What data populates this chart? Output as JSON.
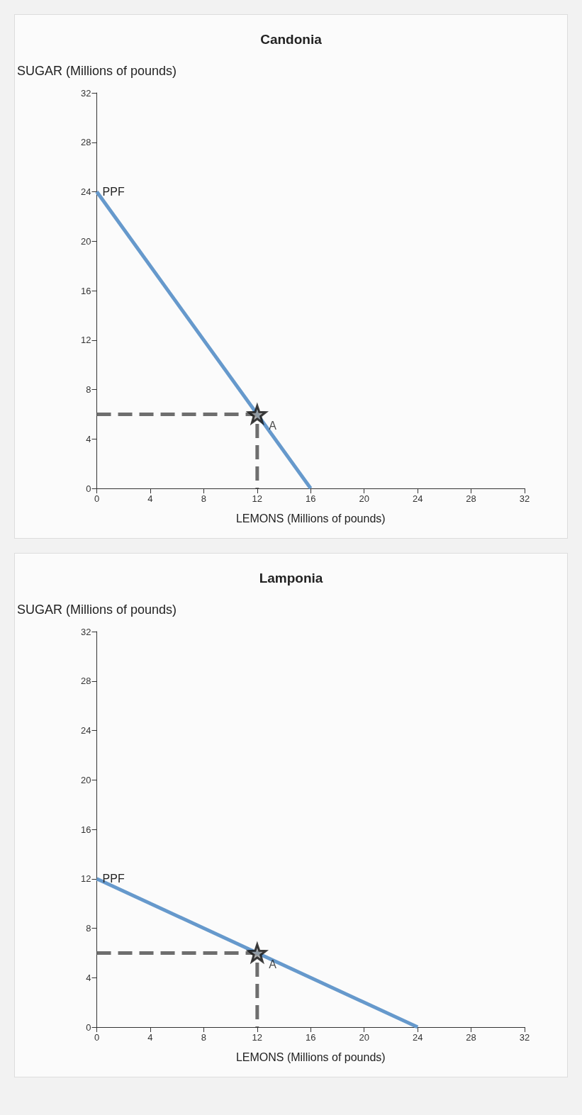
{
  "chart_data": [
    {
      "type": "line",
      "title": "Candonia",
      "xlabel": "LEMONS (Millions of pounds)",
      "ylabel": "SUGAR (Millions of pounds)",
      "xlim": [
        0,
        32
      ],
      "xticks": [
        0,
        4,
        8,
        12,
        16,
        20,
        24,
        28,
        32
      ],
      "ylim": [
        0,
        32
      ],
      "yticks": [
        0,
        4,
        8,
        12,
        16,
        20,
        24,
        28,
        32
      ],
      "series": [
        {
          "x": [
            0,
            12,
            12
          ],
          "values": [
            6,
            6,
            0
          ],
          "color": "#6e6e6e",
          "line_style": "dashed",
          "marker": "none"
        },
        {
          "name": "PPF",
          "x": [
            0,
            16
          ],
          "values": [
            24,
            0
          ],
          "color": "#6699cc",
          "line_style": "solid",
          "marker": "none"
        },
        {
          "type": "scatter",
          "name": "A",
          "x": [
            12
          ],
          "values": [
            6
          ],
          "color": "#9a9a9a",
          "marker": "star"
        }
      ]
    },
    {
      "type": "line",
      "title": "Lamponia",
      "xlabel": "LEMONS (Millions of pounds)",
      "ylabel": "SUGAR (Millions of pounds)",
      "xlim": [
        0,
        32
      ],
      "xticks": [
        0,
        4,
        8,
        12,
        16,
        20,
        24,
        28,
        32
      ],
      "ylim": [
        0,
        32
      ],
      "yticks": [
        0,
        4,
        8,
        12,
        16,
        20,
        24,
        28,
        32
      ],
      "series": [
        {
          "x": [
            0,
            12,
            12
          ],
          "values": [
            6,
            6,
            0
          ],
          "color": "#6e6e6e",
          "line_style": "dashed",
          "marker": "none"
        },
        {
          "name": "PPF",
          "x": [
            0,
            24
          ],
          "values": [
            12,
            0
          ],
          "color": "#6699cc",
          "line_style": "solid",
          "marker": "none"
        },
        {
          "type": "scatter",
          "name": "A",
          "x": [
            12
          ],
          "values": [
            6
          ],
          "color": "#9a9a9a",
          "marker": "star"
        }
      ]
    }
  ]
}
